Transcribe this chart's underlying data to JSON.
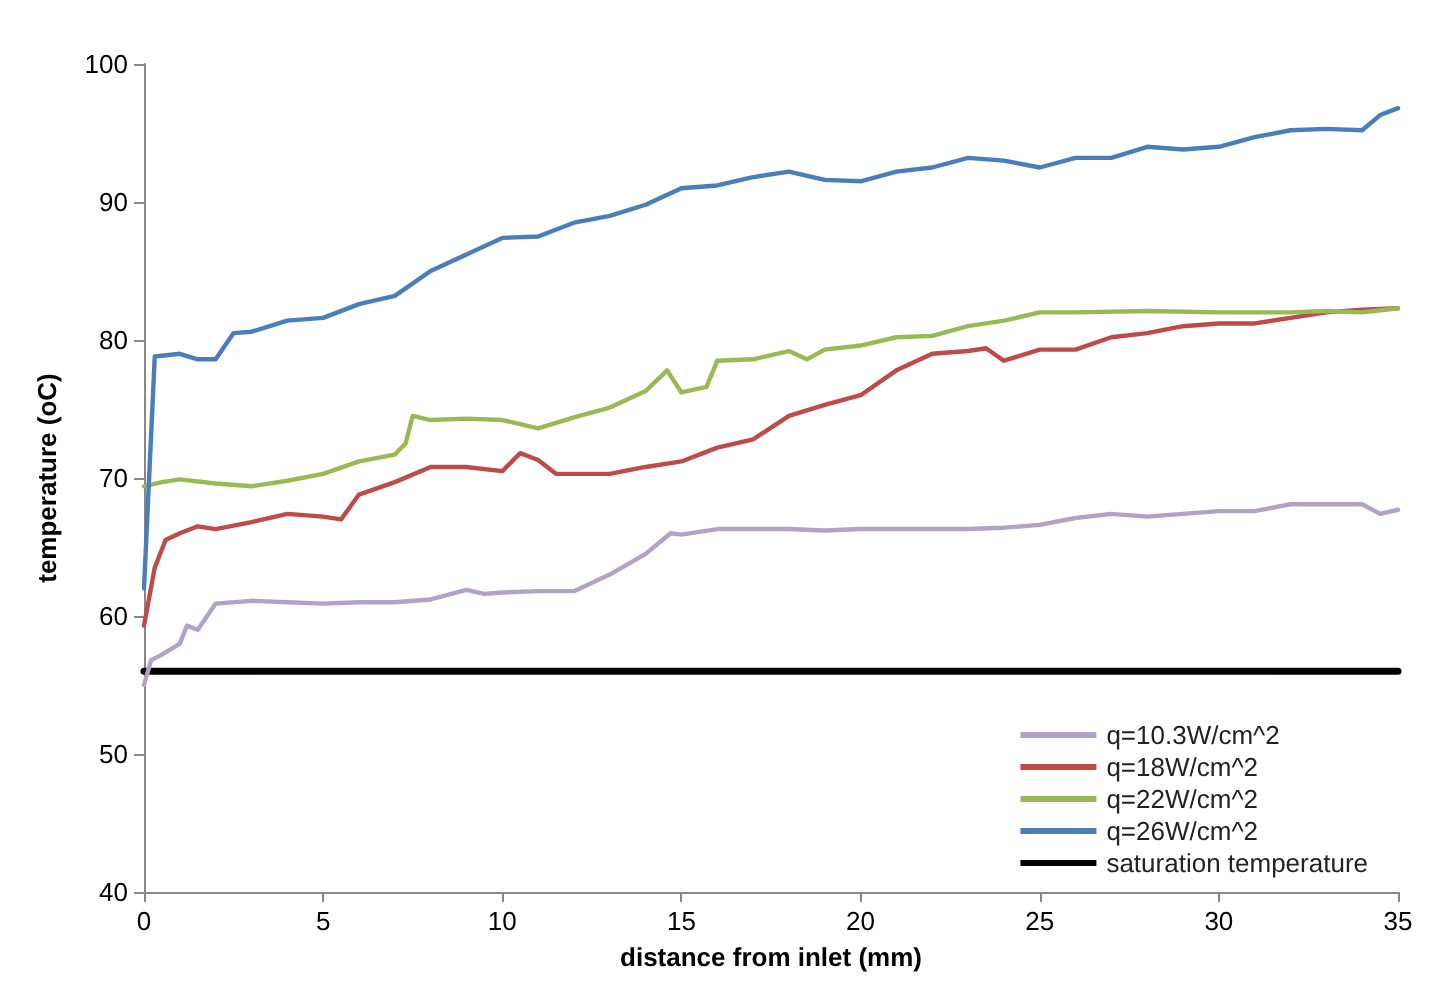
{
  "chart_data": {
    "type": "line",
    "xlabel": "distance from inlet (mm)",
    "ylabel": "temperature (oC)",
    "xlim": [
      0,
      35
    ],
    "xticks": [
      0,
      5,
      10,
      15,
      20,
      25,
      30,
      35
    ],
    "ylim": [
      40,
      100
    ],
    "yticks": [
      40,
      50,
      60,
      70,
      80,
      90,
      100
    ],
    "grid": false,
    "legend": "bottom right",
    "marker": "none",
    "line_style": "solid",
    "series": [
      {
        "name": "q=10.3W/cm^2",
        "color": "#b3a2c7",
        "x": [
          0,
          0.2,
          0.5,
          1,
          1.2,
          1.5,
          2,
          3,
          4,
          5,
          6,
          7,
          8,
          9,
          9.5,
          10,
          11,
          12,
          13,
          14,
          14.7,
          15,
          16,
          17,
          18,
          19,
          20,
          22,
          23,
          24,
          25,
          26,
          27,
          28,
          29,
          30,
          31,
          32,
          33,
          34,
          34.5,
          35
        ],
        "values": [
          55,
          56.8,
          57.2,
          58,
          59.3,
          59,
          60.9,
          61.1,
          61,
          60.9,
          61,
          61,
          61.2,
          61.9,
          61.6,
          61.7,
          61.8,
          61.8,
          63,
          64.5,
          66,
          65.9,
          66.3,
          66.3,
          66.3,
          66.2,
          66.3,
          66.3,
          66.3,
          66.4,
          66.6,
          67.1,
          67.4,
          67.2,
          67.4,
          67.6,
          67.6,
          68.1,
          68.1,
          68.1,
          67.4,
          67.7
        ]
      },
      {
        "name": "q=18W/cm^2",
        "color": "#be4b48",
        "x": [
          0,
          0.3,
          0.6,
          1,
          1.5,
          2,
          3,
          4,
          5,
          5.5,
          6,
          7,
          8,
          9,
          10,
          10.5,
          11,
          11.5,
          12,
          13,
          14,
          15,
          16,
          17,
          18,
          19,
          20,
          21,
          22,
          23,
          23.5,
          24,
          25,
          26,
          27,
          28,
          29,
          30,
          31,
          32,
          33,
          34,
          35
        ],
        "values": [
          59.3,
          63.5,
          65.5,
          66,
          66.5,
          66.3,
          66.8,
          67.4,
          67.2,
          67,
          68.8,
          69.7,
          70.8,
          70.8,
          70.5,
          71.8,
          71.3,
          70.3,
          70.3,
          70.3,
          70.8,
          71.2,
          72.2,
          72.8,
          74.5,
          75.3,
          76,
          77.8,
          79,
          79.2,
          79.4,
          78.5,
          79.3,
          79.3,
          80.2,
          80.5,
          81,
          81.2,
          81.2,
          81.6,
          82,
          82.2,
          82.3
        ]
      },
      {
        "name": "q=22W/cm^2",
        "color": "#98b954",
        "x": [
          0,
          0.5,
          1,
          2,
          3,
          4,
          5,
          6,
          7,
          7.3,
          7.5,
          8,
          9,
          10,
          11,
          12,
          13,
          14,
          14.6,
          15,
          15.7,
          16,
          17,
          18,
          18.5,
          19,
          20,
          21,
          22,
          23,
          24,
          25,
          26,
          28,
          30,
          32,
          33,
          34,
          35
        ],
        "values": [
          69.4,
          69.7,
          69.9,
          69.6,
          69.4,
          69.8,
          70.3,
          71.2,
          71.7,
          72.5,
          74.5,
          74.2,
          74.3,
          74.2,
          73.6,
          74.4,
          75.1,
          76.3,
          77.8,
          76.2,
          76.6,
          78.5,
          78.6,
          79.2,
          78.6,
          79.3,
          79.6,
          80.2,
          80.3,
          81,
          81.4,
          82,
          82,
          82.1,
          82,
          82,
          82.1,
          82,
          82.3
        ]
      },
      {
        "name": "q=26W/cm^2",
        "color": "#4a7ebb",
        "x": [
          0,
          0.3,
          1,
          1.5,
          2,
          2.5,
          3,
          4,
          5,
          6,
          7,
          8,
          9,
          10,
          11,
          12,
          13,
          14,
          15,
          16,
          17,
          18,
          19,
          20,
          21,
          22,
          23,
          24,
          25,
          26,
          27,
          28,
          29,
          30,
          31,
          32,
          33,
          34,
          34.5,
          35
        ],
        "values": [
          62,
          78.8,
          79,
          78.6,
          78.6,
          80.5,
          80.6,
          81.4,
          81.6,
          82.6,
          83.2,
          85,
          86.2,
          87.4,
          87.5,
          88.5,
          89,
          89.8,
          91,
          91.2,
          91.8,
          92.2,
          91.6,
          91.5,
          92.2,
          92.5,
          93.2,
          93,
          92.5,
          93.2,
          93.2,
          94,
          93.8,
          94,
          94.7,
          95.2,
          95.3,
          95.2,
          96.3,
          96.8
        ]
      },
      {
        "name": "saturation temperature",
        "color": "#000000",
        "x": [
          0,
          35
        ],
        "values": [
          56,
          56
        ]
      }
    ]
  }
}
